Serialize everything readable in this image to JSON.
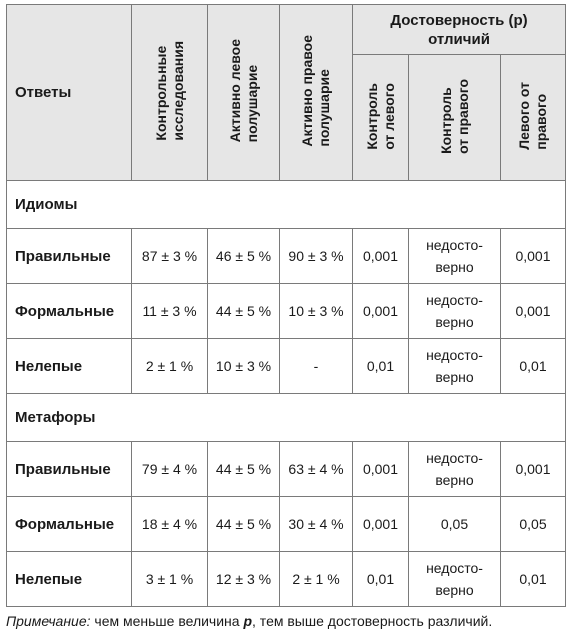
{
  "header": {
    "answers": "Ответы",
    "control": "Контрольные\nисследования",
    "left": "Активно левое\nполушарие",
    "right": "Активно правое\nполушарие",
    "reliability": "Достоверность (р)\nотличий",
    "c_vs_left": "Контроль\nот левого",
    "c_vs_right": "Контроль\nот правого",
    "left_vs_right": "Левого от\nправого"
  },
  "sections": [
    {
      "title": "Идиомы",
      "rows": [
        {
          "label": "Правильные",
          "control": "87 ± 3 %",
          "left": "46 ± 5 %",
          "right": "90 ± 3 %",
          "p1": "0,001",
          "p2": "недосто-\nверно",
          "p3": "0,001"
        },
        {
          "label": "Формальные",
          "control": "11 ± 3 %",
          "left": "44 ± 5 %",
          "right": "10 ± 3 %",
          "p1": "0,001",
          "p2": "недосто-\nверно",
          "p3": "0,001"
        },
        {
          "label": "Нелепые",
          "control": "2 ± 1 %",
          "left": "10 ± 3 %",
          "right": "-",
          "p1": "0,01",
          "p2": "недосто-\nверно",
          "p3": "0,01"
        }
      ]
    },
    {
      "title": "Метафоры",
      "rows": [
        {
          "label": "Правильные",
          "control": "79 ± 4 %",
          "left": "44 ± 5 %",
          "right": "63 ± 4 %",
          "p1": "0,001",
          "p2": "недосто-\nверно",
          "p3": "0,001"
        },
        {
          "label": "Формальные",
          "control": "18 ± 4 %",
          "left": "44 ± 5 %",
          "right": "30 ± 4 %",
          "p1": "0,001",
          "p2": "0,05",
          "p3": "0,05"
        },
        {
          "label": "Нелепые",
          "control": "3 ± 1 %",
          "left": "12 ± 3 %",
          "right": "2 ± 1 %",
          "p1": "0,01",
          "p2": "недосто-\nверно",
          "p3": "0,01"
        }
      ]
    }
  ],
  "note": {
    "label": "Примечание:",
    "text_before": " чем меньше величина ",
    "var": "р",
    "text_after": ", тем выше достоверность различий."
  }
}
